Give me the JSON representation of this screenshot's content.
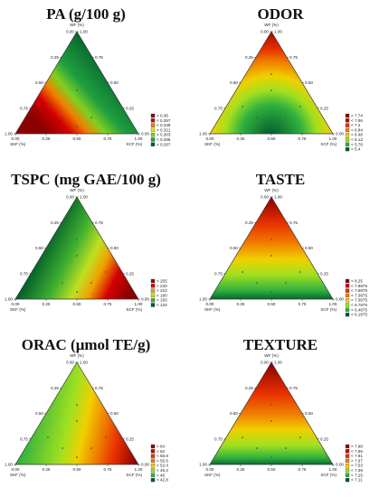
{
  "chart_data": [
    {
      "type": "ternary-contour",
      "title": "PA (g/100 g)",
      "axes": {
        "top": "WF (%)",
        "left": "SKF (%)",
        "right": "SCF (%)"
      },
      "ticks": {
        "left_edge": [
          "0.00",
          "0.25",
          "0.50",
          "0.75",
          "1.00"
        ],
        "right_edge": [
          "1.00",
          "0.75",
          "0.50",
          "0.25",
          "0.00"
        ],
        "bottom_edge": [
          "0.00",
          "0.25",
          "0.50",
          "0.75",
          "1.00"
        ]
      },
      "legend": {
        "labels": [
          "< 0.36",
          "< 0.357",
          "< 0.339",
          "< 0.321",
          "< 0.303",
          "< 0.285",
          "< 0.267"
        ],
        "colors": [
          "#8b0000",
          "#d40000",
          "#f08000",
          "#f0e000",
          "#80d020",
          "#20a040",
          "#005a2a"
        ]
      },
      "gradient": "high at SKF corner, low toward WF/SCF edge"
    },
    {
      "type": "ternary-contour",
      "title": "ODOR",
      "axes": {
        "top": "WF (%)",
        "left": "SKF (%)",
        "right": "SCF (%)"
      },
      "ticks": {
        "left_edge": [
          "0.00",
          "0.25",
          "0.50",
          "0.75",
          "1.00"
        ],
        "right_edge": [
          "1.00",
          "0.75",
          "0.50",
          "0.25",
          "0.00"
        ],
        "bottom_edge": [
          "0.00",
          "0.25",
          "0.50",
          "0.75",
          "1.00"
        ]
      },
      "legend": {
        "labels": [
          "< 7.74",
          "< 7.56",
          "< 7.2",
          "< 6.84",
          "< 6.48",
          "< 6.12",
          "< 5.76",
          "< 5.4"
        ],
        "colors": [
          "#8b0000",
          "#c80000",
          "#e83000",
          "#f08000",
          "#f0d000",
          "#a0e020",
          "#30b040",
          "#005a2a"
        ]
      },
      "gradient": "high at corners, low at bottom-center"
    },
    {
      "type": "ternary-contour",
      "title": "TSPC (mg GAE/100 g)",
      "axes": {
        "top": "WF (%)",
        "left": "SKF (%)",
        "right": "SCF (%)"
      },
      "ticks": {
        "left_edge": [
          "0.00",
          "0.25",
          "0.50",
          "0.75",
          "1.00"
        ],
        "right_edge": [
          "1.00",
          "0.75",
          "0.50",
          "0.25",
          "0.00"
        ],
        "bottom_edge": [
          "0.00",
          "0.25",
          "0.50",
          "0.75",
          "1.00"
        ]
      },
      "legend": {
        "labels": [
          "< 255",
          "< 240",
          "< 210",
          "< 180",
          "< 150",
          "< 120"
        ],
        "colors": [
          "#8b0000",
          "#d40000",
          "#f0a000",
          "#c0e020",
          "#40b030",
          "#005a2a"
        ]
      },
      "gradient": "high at SCF corner, low toward SKF"
    },
    {
      "type": "ternary-contour",
      "title": "TASTE",
      "axes": {
        "top": "WF (%)",
        "left": "SKF (%)",
        "right": "SCF (%)"
      },
      "ticks": {
        "left_edge": [
          "0.00",
          "0.25",
          "0.50",
          "0.75",
          "1.00"
        ],
        "right_edge": [
          "1.00",
          "0.75",
          "0.50",
          "0.25",
          "0.00"
        ],
        "bottom_edge": [
          "0.00",
          "0.25",
          "0.50",
          "0.75",
          "1.00"
        ]
      },
      "legend": {
        "labels": [
          "< 8.25",
          "< 7.9875",
          "< 7.6875",
          "< 7.3875",
          "< 7.0875",
          "< 6.7875",
          "< 6.4875",
          "< 6.1875"
        ],
        "colors": [
          "#8b0000",
          "#c80000",
          "#e83000",
          "#f08000",
          "#f0d000",
          "#a0e020",
          "#30b040",
          "#005a2a"
        ]
      },
      "gradient": "high at WF corner, low at bottom edge"
    },
    {
      "type": "ternary-contour",
      "title": "ORAC (μmol TE/g)",
      "axes": {
        "top": "WF (%)",
        "left": "SKF (%)",
        "right": "SCF (%)"
      },
      "ticks": {
        "left_edge": [
          "0.00",
          "0.25",
          "0.50",
          "0.75",
          "1.00"
        ],
        "right_edge": [
          "1.00",
          "0.75",
          "0.50",
          "0.25",
          "0.00"
        ],
        "bottom_edge": [
          "0.00",
          "0.25",
          "0.50",
          "0.75",
          "1.00"
        ]
      },
      "legend": {
        "labels": [
          "< 64",
          "< 62",
          "< 58.8",
          "< 55.6",
          "< 52.4",
          "< 49.2",
          "< 46",
          "< 42.8"
        ],
        "colors": [
          "#8b0000",
          "#c80000",
          "#e83000",
          "#f08000",
          "#f0d000",
          "#a0e020",
          "#30b040",
          "#005a2a"
        ]
      },
      "gradient": "high at SCF corner, low at SKF corner"
    },
    {
      "type": "ternary-contour",
      "title": "TEXTURE",
      "axes": {
        "top": "WF (%)",
        "left": "SKF (%)",
        "right": "SCF (%)"
      },
      "ticks": {
        "left_edge": [
          "0.00",
          "0.25",
          "0.50",
          "0.75",
          "1.00"
        ],
        "right_edge": [
          "1.00",
          "0.75",
          "0.50",
          "0.25",
          "0.00"
        ],
        "bottom_edge": [
          "0.00",
          "0.25",
          "0.50",
          "0.75",
          "1.00"
        ]
      },
      "legend": {
        "labels": [
          "< 7.98",
          "< 7.95",
          "< 7.81",
          "< 7.67",
          "< 7.53",
          "< 7.39",
          "< 7.25",
          "< 7.11"
        ],
        "colors": [
          "#8b0000",
          "#c80000",
          "#e83000",
          "#f08000",
          "#f0d000",
          "#a0e020",
          "#30b040",
          "#005a2a"
        ]
      },
      "gradient": "high at WF corner, low at bottom-center"
    }
  ]
}
